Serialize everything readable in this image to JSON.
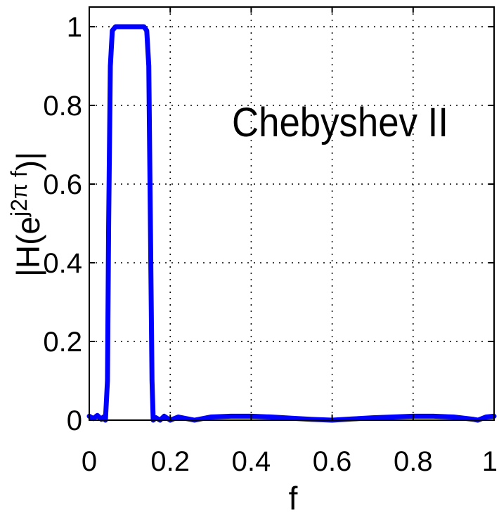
{
  "chart_data": {
    "type": "line",
    "annotation": "Chebyshev II",
    "xlabel": "f",
    "ylabel": {
      "prefix": "|H(e",
      "superscript": "j2π f",
      "suffix": ")|"
    },
    "xlim": [
      0,
      1
    ],
    "ylim": [
      0,
      1.05
    ],
    "xticks": [
      "0",
      "0.2",
      "0.4",
      "0.6",
      "0.8",
      "1"
    ],
    "yticks": [
      "0",
      "0.2",
      "0.4",
      "0.6",
      "0.8",
      "1"
    ],
    "grid": true,
    "grid_style": "dotted",
    "series": [
      {
        "color": "#0000ff",
        "points": [
          [
            0.0,
            0.01
          ],
          [
            0.01,
            0.004
          ],
          [
            0.02,
            0.012
          ],
          [
            0.03,
            0.002
          ],
          [
            0.035,
            0.008
          ],
          [
            0.04,
            0.0
          ],
          [
            0.045,
            0.1
          ],
          [
            0.048,
            0.5
          ],
          [
            0.052,
            0.9
          ],
          [
            0.057,
            0.99
          ],
          [
            0.065,
            1.0
          ],
          [
            0.08,
            1.0
          ],
          [
            0.1,
            1.0
          ],
          [
            0.12,
            1.0
          ],
          [
            0.135,
            1.0
          ],
          [
            0.142,
            0.99
          ],
          [
            0.147,
            0.9
          ],
          [
            0.151,
            0.5
          ],
          [
            0.155,
            0.1
          ],
          [
            0.158,
            0.0
          ],
          [
            0.165,
            0.006
          ],
          [
            0.175,
            0.0
          ],
          [
            0.185,
            0.01
          ],
          [
            0.2,
            0.0
          ],
          [
            0.22,
            0.008
          ],
          [
            0.26,
            0.0
          ],
          [
            0.3,
            0.008
          ],
          [
            0.35,
            0.01
          ],
          [
            0.4,
            0.01
          ],
          [
            0.45,
            0.008
          ],
          [
            0.5,
            0.005
          ],
          [
            0.55,
            0.002
          ],
          [
            0.6,
            0.0
          ],
          [
            0.65,
            0.003
          ],
          [
            0.7,
            0.006
          ],
          [
            0.75,
            0.008
          ],
          [
            0.8,
            0.01
          ],
          [
            0.85,
            0.01
          ],
          [
            0.9,
            0.008
          ],
          [
            0.95,
            0.002
          ],
          [
            0.96,
            0.0
          ],
          [
            0.98,
            0.008
          ],
          [
            1.0,
            0.01
          ]
        ]
      }
    ]
  }
}
